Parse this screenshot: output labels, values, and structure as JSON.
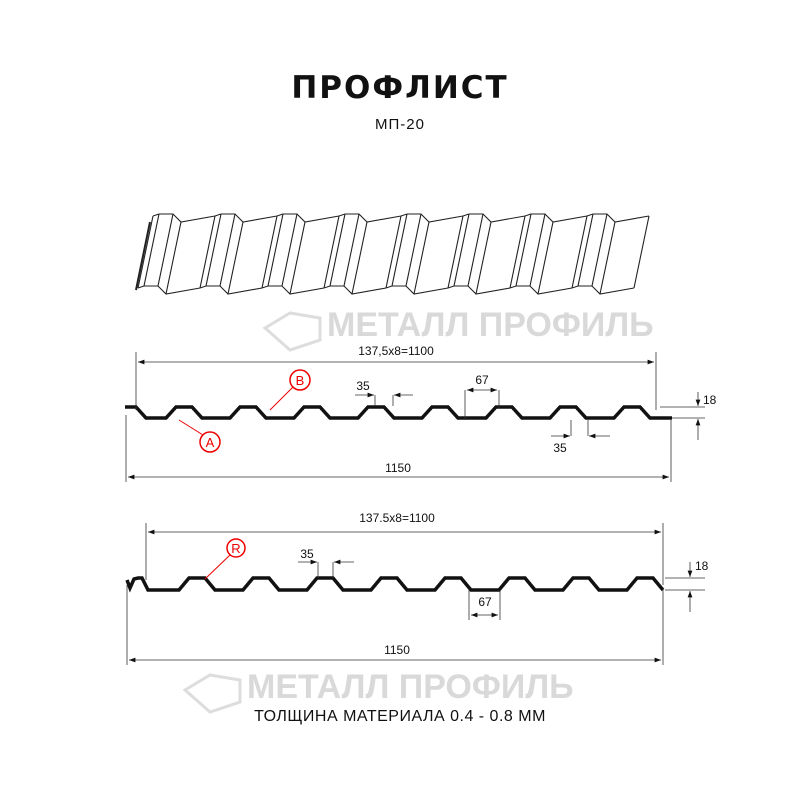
{
  "header": {
    "title": "ПРОФЛИСТ",
    "subtitle": "МП-20"
  },
  "watermark": {
    "text": "МЕТАЛЛ ПРОФИЛЬ"
  },
  "profile_a": {
    "pitch_label": "137,5x8=1100",
    "total_label": "1150",
    "top_width_label": "35",
    "bottom_width_label": "35",
    "rib_base_label": "67",
    "height_label": "18",
    "marker_a": "A",
    "marker_b": "B"
  },
  "profile_b": {
    "pitch_label": "137.5x8=1100",
    "total_label": "1150",
    "top_width_label": "35",
    "rib_base_label": "67",
    "height_label": "18",
    "marker_r": "R"
  },
  "footer": {
    "thickness": "ТОЛЩИНА МАТЕРИАЛА 0.4 - 0.8 ММ"
  },
  "colors": {
    "line": "#111111",
    "marker": "#e00000",
    "watermark": "#d9d9d9"
  }
}
